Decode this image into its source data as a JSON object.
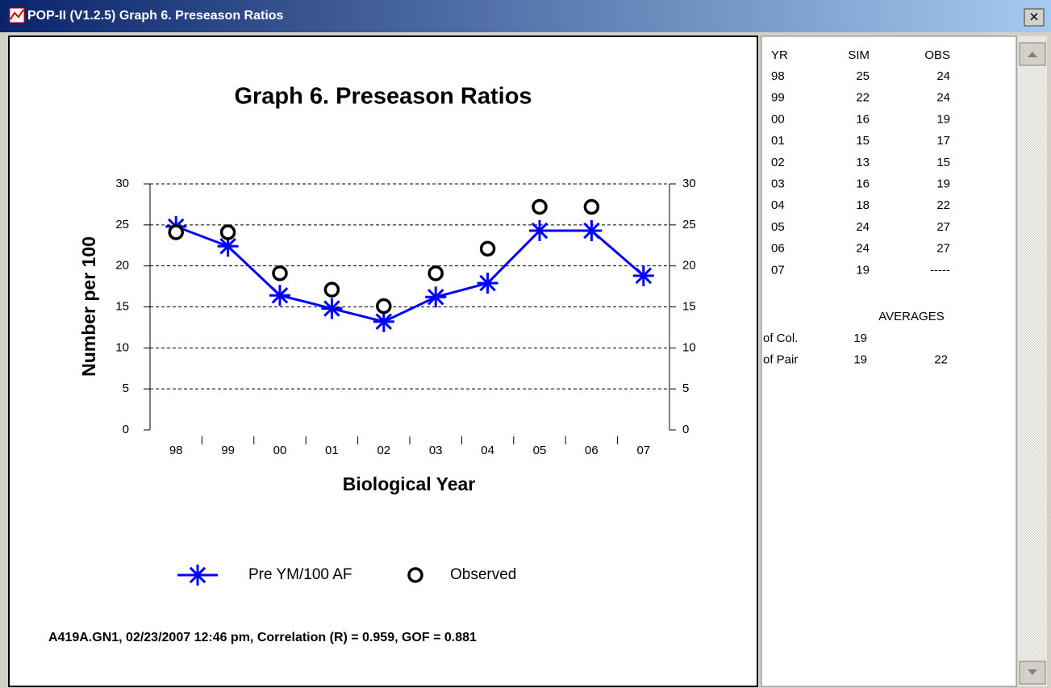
{
  "window": {
    "title": "POP-II (V1.2.5) Graph 6.  Preseason Ratios",
    "close": "×"
  },
  "chart_data": {
    "type": "line",
    "title": "Graph 6.  Preseason Ratios",
    "ylabel": "Number per 100",
    "xlabel": "Biological Year",
    "categories": [
      "98",
      "99",
      "00",
      "01",
      "02",
      "03",
      "04",
      "05",
      "06",
      "07"
    ],
    "series": [
      {
        "name": "Pre YM/100 AF",
        "color": "#0000ff",
        "marker": "star",
        "line": true,
        "values": [
          24.8,
          22.4,
          16.4,
          14.8,
          13.2,
          16.2,
          17.9,
          24.3,
          24.3,
          18.8
        ]
      },
      {
        "name": "Observed",
        "color": "#000000",
        "marker": "circle",
        "line": false,
        "values": [
          24.1,
          24.1,
          19.1,
          17.1,
          15.1,
          19.1,
          22.1,
          27.2,
          27.2,
          null
        ]
      }
    ],
    "ylim": [
      0,
      30
    ],
    "yticks": [
      0,
      5,
      10,
      15,
      20,
      25,
      30
    ],
    "y2lim": [
      0,
      30
    ],
    "y2ticks": [
      0,
      5,
      10,
      15,
      20,
      25,
      30
    ],
    "grid": true,
    "footer": "A419A.GN1, 02/23/2007  12:46 pm, Correlation (R) = 0.959, GOF = 0.881"
  },
  "table": {
    "header": [
      "YR",
      "SIM",
      "OBS"
    ],
    "rows": [
      [
        "98",
        "25",
        "24"
      ],
      [
        "99",
        "22",
        "24"
      ],
      [
        "00",
        "16",
        "19"
      ],
      [
        "01",
        "15",
        "17"
      ],
      [
        "02",
        "13",
        "15"
      ],
      [
        "03",
        "16",
        "19"
      ],
      [
        "04",
        "18",
        "22"
      ],
      [
        "05",
        "24",
        "27"
      ],
      [
        "06",
        "24",
        "27"
      ],
      [
        "07",
        "19",
        "-----"
      ]
    ],
    "averages_title": "AVERAGES",
    "averages": [
      [
        "of Col.",
        "19"
      ],
      [
        "of Pair",
        "19",
        "22"
      ]
    ]
  }
}
